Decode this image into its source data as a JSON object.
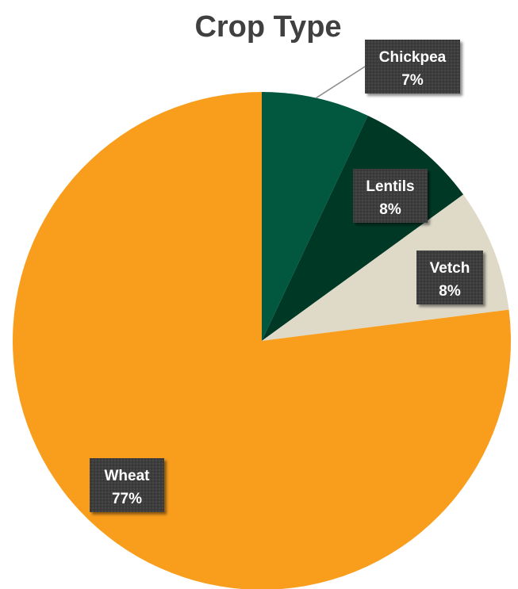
{
  "chart_data": {
    "type": "pie",
    "title": "Crop Type",
    "slices": [
      {
        "name": "Chickpea",
        "value": 7,
        "label": "7%",
        "color": "#02583f"
      },
      {
        "name": "Lentils",
        "value": 8,
        "label": "8%",
        "color": "#003826"
      },
      {
        "name": "Vetch",
        "value": 8,
        "label": "8%",
        "color": "#dfdac8"
      },
      {
        "name": "Wheat",
        "value": 77,
        "label": "77%",
        "color": "#f99d1c"
      }
    ],
    "start_angle_deg": 0,
    "direction": "clockwise",
    "data_label_box_color": "#3a3a3a"
  }
}
